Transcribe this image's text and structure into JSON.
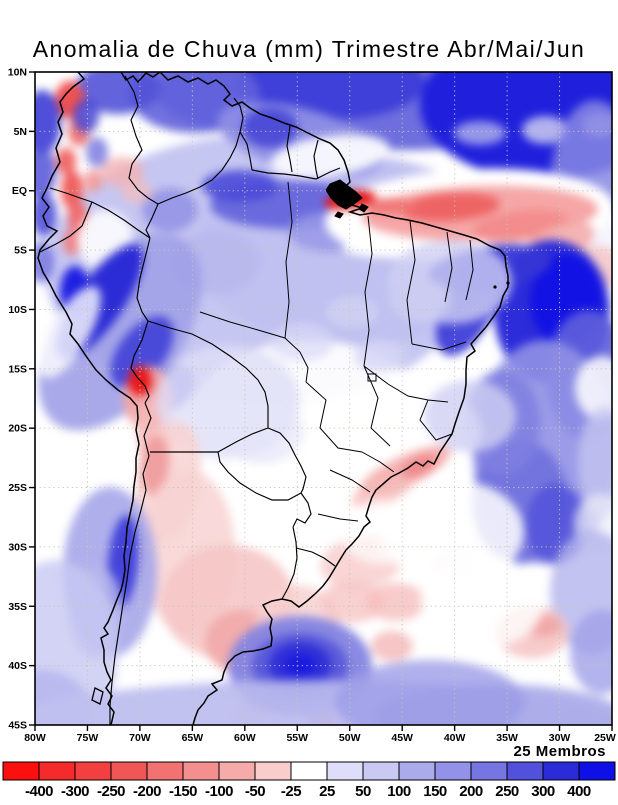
{
  "page": {
    "background": "#ffffff"
  },
  "chart_data": {
    "type": "heatmap",
    "title": "Anomalia de Chuva (mm) Trimestre Abr/Mai/Jun",
    "members_label": "25 Membros",
    "x_ticks": [
      "80W",
      "75W",
      "70W",
      "65W",
      "60W",
      "55W",
      "50W",
      "45W",
      "40W",
      "35W",
      "30W",
      "25W"
    ],
    "y_ticks": [
      "10N",
      "5N",
      "EQ",
      "5S",
      "10S",
      "15S",
      "20S",
      "25S",
      "30S",
      "35S",
      "40S",
      "45S"
    ],
    "grid": true,
    "legend_position": "bottom",
    "colorbar": {
      "boundary_labels": [
        "-400",
        "-300",
        "-250",
        "-200",
        "-150",
        "-100",
        "-50",
        "-25",
        "25",
        "50",
        "100",
        "150",
        "200",
        "250",
        "300",
        "400"
      ],
      "colors": [
        "#fb0f0f",
        "#f52a2a",
        "#f24040",
        "#f15656",
        "#f27272",
        "#f48f8f",
        "#f6abab",
        "#facdcd",
        "#ffffff",
        "#dedefa",
        "#c9c9f4",
        "#ababec",
        "#9292e8",
        "#7676e2",
        "#5151dc",
        "#2b2bd8",
        "#0f0fe8"
      ]
    },
    "anomaly_extremes": {
      "positive_regions": [
        "tropical North Atlantic",
        "NE Brazil coast offshore",
        "Peru Andes",
        "Chile coast 30-38S",
        "SW Atlantic 40S"
      ],
      "negative_regions": [
        "equatorial Atlantic near Amazon mouth",
        "Altiplano (Lake Titicaca)",
        "N Argentina / Chaco",
        "Colombia-Ecuador Andes"
      ]
    },
    "field_blobs": [
      [
        400,
        92,
        245,
        58,
        0,
        "#6e6ede",
        1
      ],
      [
        545,
        105,
        125,
        75,
        0,
        "#2020dc",
        1
      ],
      [
        330,
        82,
        95,
        38,
        0,
        "#3c3cd8",
        0.95
      ],
      [
        195,
        95,
        65,
        38,
        0,
        "#6060dc",
        0.9
      ],
      [
        118,
        88,
        42,
        26,
        0,
        "#5252d8",
        0.9
      ],
      [
        545,
        130,
        23,
        14,
        0,
        "#ccccf2",
        0.85
      ],
      [
        600,
        125,
        18,
        12,
        0,
        "#d8d8f6",
        0.8
      ],
      [
        480,
        133,
        26,
        12,
        0,
        "#b4b4ee",
        0.8
      ],
      [
        598,
        218,
        18,
        16,
        0,
        "#ffffff",
        0.75
      ],
      [
        595,
        190,
        45,
        90,
        0,
        "#8888e4",
        0.85
      ],
      [
        260,
        270,
        215,
        135,
        0,
        "#c6c6f2",
        1
      ],
      [
        350,
        250,
        155,
        95,
        0,
        "#c0c0f0",
        0.95
      ],
      [
        300,
        140,
        85,
        32,
        15,
        "#9090e6",
        0.9
      ],
      [
        270,
        128,
        28,
        20,
        0,
        "#4646d6",
        0.9
      ],
      [
        170,
        210,
        28,
        22,
        0,
        "#9090e6",
        0.85
      ],
      [
        290,
        205,
        80,
        24,
        0,
        "#6060dc",
        0.9
      ],
      [
        240,
        186,
        38,
        16,
        0,
        "#4a4ad8",
        0.9
      ],
      [
        330,
        232,
        42,
        20,
        0,
        "#9898e8",
        0.85
      ],
      [
        215,
        262,
        45,
        32,
        0,
        "#b6b6ee",
        0.8
      ],
      [
        330,
        156,
        60,
        20,
        -8,
        "#ffffff",
        0.9
      ],
      [
        470,
        215,
        145,
        46,
        -3,
        "#ffffff",
        1
      ],
      [
        598,
        242,
        45,
        32,
        0,
        "#ffffff",
        0.9
      ],
      [
        420,
        243,
        78,
        14,
        -4,
        "#ffffff",
        0.9
      ],
      [
        480,
        213,
        118,
        27,
        -2,
        "#f6a6a6",
        1
      ],
      [
        450,
        207,
        50,
        14,
        -4,
        "#ee6464",
        1
      ],
      [
        520,
        226,
        48,
        15,
        -8,
        "#f28a8a",
        0.95
      ],
      [
        560,
        242,
        36,
        17,
        -20,
        "#f4acac",
        0.9
      ],
      [
        350,
        200,
        26,
        9,
        -8,
        "#e41616",
        1
      ],
      [
        390,
        206,
        26,
        8,
        0,
        "#f07474",
        0.95
      ],
      [
        595,
        268,
        32,
        22,
        0,
        "#f8c4c4",
        0.8
      ],
      [
        552,
        312,
        58,
        72,
        0,
        "#2c2cda",
        1
      ],
      [
        566,
        300,
        36,
        46,
        0,
        "#1212e4",
        1
      ],
      [
        588,
        375,
        42,
        65,
        0,
        "#6060dc",
        0.9
      ],
      [
        470,
        302,
        26,
        58,
        25,
        "#3434d6",
        0.9
      ],
      [
        490,
        268,
        62,
        22,
        -8,
        "#3636d6",
        0.95
      ],
      [
        545,
        452,
        72,
        112,
        0,
        "#9090e6",
        0.9
      ],
      [
        520,
        502,
        48,
        62,
        0,
        "#7070de",
        0.9
      ],
      [
        502,
        422,
        38,
        52,
        0,
        "#8080e2",
        0.85
      ],
      [
        556,
        524,
        30,
        40,
        0,
        "#5454da",
        0.9
      ],
      [
        602,
        388,
        27,
        32,
        0,
        "#ffffff",
        0.85
      ],
      [
        604,
        462,
        26,
        55,
        0,
        "#c4c4f0",
        0.8
      ],
      [
        600,
        524,
        26,
        30,
        0,
        "#eeeefa",
        0.7
      ],
      [
        450,
        282,
        62,
        42,
        0,
        "#d0d0f4",
        0.8
      ],
      [
        310,
        432,
        125,
        92,
        0,
        "#ffffff",
        0.92
      ],
      [
        250,
        502,
        85,
        62,
        0,
        "#ffffff",
        0.88
      ],
      [
        420,
        432,
        62,
        42,
        0,
        "#ffffff",
        0.8
      ],
      [
        420,
        300,
        32,
        22,
        0,
        "#ccccf2",
        0.8
      ],
      [
        380,
        356,
        26,
        16,
        0,
        "#d6d6f6",
        0.8
      ],
      [
        470,
        416,
        46,
        36,
        0,
        "#d0d0f4",
        0.8
      ],
      [
        352,
        312,
        26,
        16,
        0,
        "#d4d4f4",
        0.7
      ],
      [
        302,
        342,
        32,
        19,
        0,
        "#d8d8f6",
        0.7
      ],
      [
        70,
        100,
        15,
        19,
        0,
        "#ee5252",
        1
      ],
      [
        79,
        131,
        11,
        15,
        0,
        "#f07272",
        0.95
      ],
      [
        66,
        161,
        10,
        13,
        0,
        "#f06262",
        0.95
      ],
      [
        72,
        190,
        11,
        20,
        0,
        "#ee5a5a",
        0.95
      ],
      [
        78,
        218,
        10,
        16,
        0,
        "#f06a6a",
        0.95
      ],
      [
        72,
        242,
        9,
        13,
        0,
        "#f07a7a",
        0.9
      ],
      [
        93,
        181,
        9,
        11,
        0,
        "#f29292",
        0.85
      ],
      [
        122,
        172,
        22,
        15,
        0,
        "#f4b2b2",
        0.8
      ],
      [
        137,
        192,
        16,
        11,
        0,
        "#f6bcbc",
        0.7
      ],
      [
        42,
        122,
        19,
        32,
        0,
        "#3c3cd6",
        0.9
      ],
      [
        40,
        172,
        16,
        26,
        0,
        "#5252d8",
        0.85
      ],
      [
        44,
        215,
        13,
        22,
        0,
        "#4646d6",
        0.85
      ],
      [
        41,
        262,
        13,
        21,
        0,
        "#6c6cde",
        0.8
      ],
      [
        86,
        116,
        13,
        17,
        0,
        "#4646d6",
        0.85
      ],
      [
        97,
        152,
        11,
        15,
        0,
        "#7272de",
        0.8
      ],
      [
        105,
        240,
        28,
        30,
        0,
        "#ffffff",
        0.85
      ],
      [
        120,
        332,
        62,
        112,
        35,
        "#a0a0e8",
        0.9
      ],
      [
        100,
        302,
        23,
        68,
        35,
        "#2c2cd6",
        1
      ],
      [
        75,
        292,
        15,
        26,
        0,
        "#1616e0",
        0.95
      ],
      [
        142,
        352,
        23,
        42,
        38,
        "#4646d8",
        0.95
      ],
      [
        172,
        388,
        19,
        26,
        40,
        "#6c6cde",
        0.85
      ],
      [
        70,
        332,
        19,
        52,
        30,
        "#ffffff",
        0.8
      ],
      [
        148,
        398,
        25,
        32,
        0,
        "#f4a8a8",
        0.95
      ],
      [
        140,
        381,
        12,
        15,
        0,
        "#e81818",
        1
      ],
      [
        154,
        432,
        17,
        37,
        0,
        "#f6b8b8",
        0.85
      ],
      [
        228,
        402,
        72,
        57,
        0,
        "#dedef8",
        0.8
      ],
      [
        262,
        432,
        42,
        32,
        0,
        "#e6e6fa",
        0.7
      ],
      [
        168,
        482,
        32,
        62,
        10,
        "#f8d2d2",
        0.85
      ],
      [
        155,
        465,
        14,
        30,
        5,
        "#f09a9a",
        0.9
      ],
      [
        188,
        552,
        47,
        82,
        0,
        "#f8d2d2",
        0.85
      ],
      [
        228,
        602,
        67,
        57,
        0,
        "#f6c6c6",
        0.9
      ],
      [
        242,
        642,
        37,
        32,
        0,
        "#f2a8a8",
        0.9
      ],
      [
        297,
        622,
        42,
        37,
        0,
        "#f8cece",
        0.8
      ],
      [
        248,
        716,
        19,
        14,
        0,
        "#f28e8e",
        0.9
      ],
      [
        322,
        720,
        15,
        12,
        0,
        "#f29898",
        0.85
      ],
      [
        110,
        572,
        47,
        85,
        0,
        "#a6a6ea",
        0.9
      ],
      [
        123,
        562,
        15,
        47,
        5,
        "#3e3ed8",
        0.95
      ],
      [
        96,
        612,
        27,
        47,
        0,
        "#b8b8ee",
        0.8
      ],
      [
        56,
        652,
        62,
        92,
        0,
        "#c8c8f2",
        0.8
      ],
      [
        40,
        712,
        52,
        42,
        0,
        "#b4b4ee",
        0.8
      ],
      [
        300,
        666,
        72,
        50,
        0,
        "#8484e2",
        0.95
      ],
      [
        300,
        666,
        48,
        33,
        0,
        "#5858da",
        0.95
      ],
      [
        300,
        665,
        31,
        23,
        0,
        "#3030d8",
        1
      ],
      [
        300,
        665,
        15,
        11,
        0,
        "#1a1ae0",
        1
      ],
      [
        320,
        722,
        305,
        42,
        0,
        "#babaee",
        0.9
      ],
      [
        500,
        716,
        125,
        32,
        0,
        "#aaaaea",
        0.85
      ],
      [
        145,
        722,
        125,
        32,
        0,
        "#c2c2f0",
        0.8
      ],
      [
        430,
        702,
        95,
        42,
        0,
        "#9c9ce8",
        0.8
      ],
      [
        592,
        592,
        42,
        62,
        0,
        "#b4b4ee",
        0.8
      ],
      [
        602,
        652,
        32,
        42,
        0,
        "#a0a0e8",
        0.8
      ],
      [
        405,
        471,
        50,
        15,
        -25,
        "#f4aeae",
        0.95
      ],
      [
        419,
        466,
        19,
        9,
        -25,
        "#ee8686",
        0.9
      ],
      [
        382,
        492,
        32,
        13,
        -20,
        "#f6bcbc",
        0.8
      ],
      [
        362,
        562,
        42,
        26,
        -10,
        "#f8cece",
        0.85
      ],
      [
        352,
        602,
        32,
        21,
        0,
        "#f6c4c4",
        0.8
      ],
      [
        396,
        602,
        30,
        19,
        0,
        "#f6bebe",
        0.8
      ],
      [
        392,
        646,
        21,
        15,
        0,
        "#f4b6b6",
        0.8
      ],
      [
        532,
        632,
        37,
        26,
        0,
        "#f6c2c2",
        0.85
      ],
      [
        544,
        626,
        16,
        11,
        0,
        "#f0a2a2",
        0.85
      ],
      [
        456,
        566,
        23,
        11,
        0,
        "#f8cece",
        0.7
      ],
      [
        452,
        532,
        72,
        52,
        0,
        "#ffffff",
        0.85
      ],
      [
        482,
        602,
        62,
        47,
        0,
        "#ffffff",
        0.8
      ],
      [
        382,
        532,
        42,
        32,
        0,
        "#ffffff",
        0.7
      ]
    ]
  }
}
